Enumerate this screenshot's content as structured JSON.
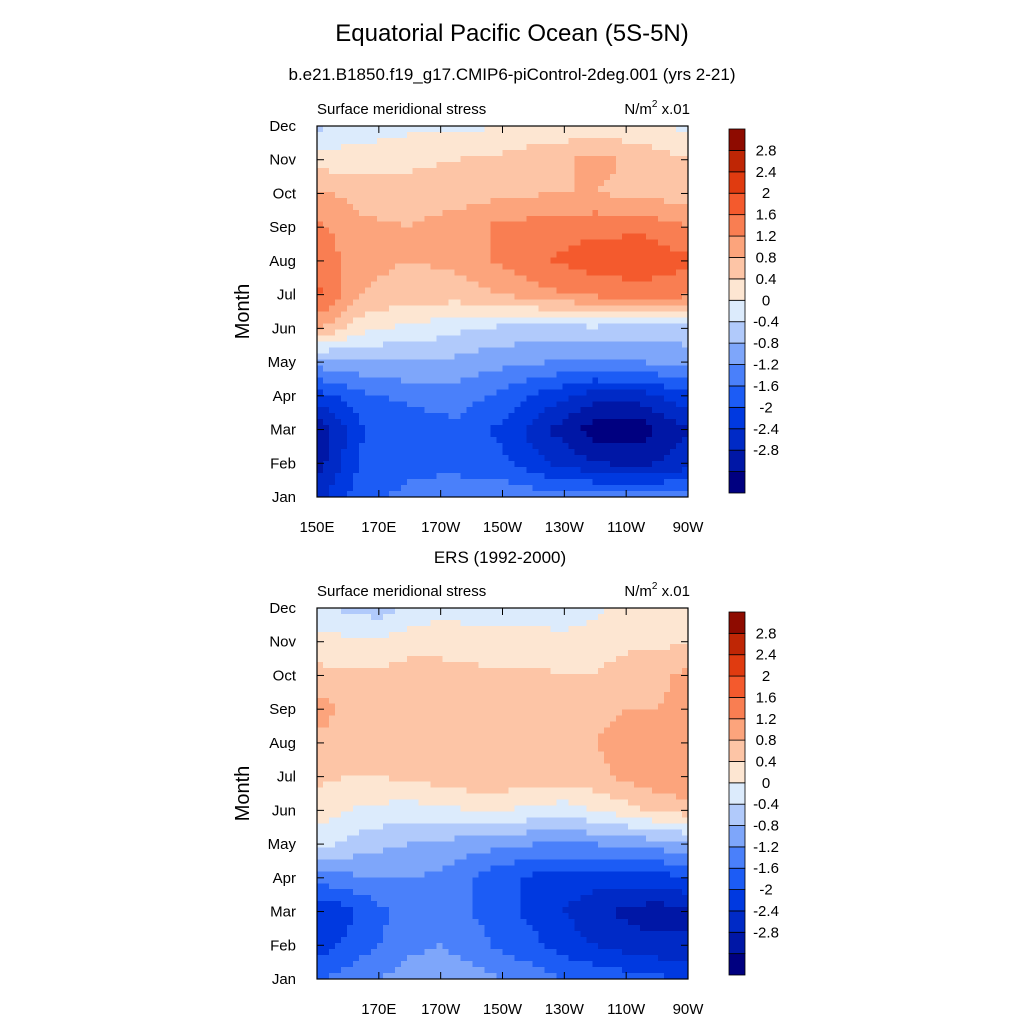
{
  "figure": {
    "title": "Equatorial Pacific Ocean (5S-5N)",
    "subtitle": "b.e21.B1850.f19_g17.CMIP6-piControl-2deg.001 (yrs 2-21)",
    "caption": "ERS (1992-2000)"
  },
  "colors": {
    "levels": [
      "#000080",
      "#0017a6",
      "#002ac6",
      "#0039e0",
      "#1c5cf5",
      "#4a80fa",
      "#7ea6fa",
      "#b1cafb",
      "#dcebfc",
      "#fde6d2",
      "#fdc5a6",
      "#fca47c",
      "#f97e52",
      "#f45a2d",
      "#e03b10",
      "#bf2605",
      "#8e0b00"
    ]
  },
  "colorbar_labels": [
    "2.8",
    "2.4",
    "2",
    "1.6",
    "1.2",
    "0.8",
    "0.4",
    "0",
    "-0.4",
    "-0.8",
    "-1.2",
    "-1.6",
    "-2",
    "-2.4",
    "-2.8"
  ],
  "chart_data": [
    {
      "type": "heatmap",
      "panel": "model",
      "left_label": "Surface meridional stress",
      "right_label": "N/m",
      "right_label_sup": "2",
      "right_label_suffix": " x.01",
      "ylabel": "Month",
      "y_ticks": [
        "Jan",
        "Feb",
        "Mar",
        "Apr",
        "May",
        "Jun",
        "Jul",
        "Aug",
        "Sep",
        "Oct",
        "Nov",
        "Dec"
      ],
      "x_ticks": [
        "150E",
        "170E",
        "170W",
        "150W",
        "130W",
        "110W",
        "90W"
      ],
      "x_tick_values": [
        150,
        170,
        190,
        210,
        230,
        250,
        270
      ],
      "xlim": [
        150,
        270
      ],
      "ylim": [
        1,
        12
      ],
      "levels": [
        -2.8,
        -2.4,
        -2,
        -1.6,
        -1.2,
        -0.8,
        -0.4,
        0,
        0.4,
        0.8,
        1.2,
        1.6,
        2,
        2.4,
        2.8
      ],
      "lon": [
        150,
        165,
        180,
        195,
        210,
        225,
        240,
        255,
        270
      ],
      "month": [
        1,
        2,
        3,
        4,
        5,
        6,
        7,
        8,
        9,
        10,
        11,
        12
      ],
      "values": [
        [
          -2.2,
          -1.3,
          -1.1,
          -1.0,
          -0.9,
          -1.0,
          -1.0,
          -1.0,
          -1.0
        ],
        [
          -2.6,
          -1.5,
          -1.3,
          -1.3,
          -1.5,
          -2.0,
          -2.4,
          -2.5,
          -2.2
        ],
        [
          -2.7,
          -1.6,
          -1.4,
          -1.3,
          -1.7,
          -2.4,
          -3.0,
          -3.0,
          -2.4
        ],
        [
          -1.8,
          -1.3,
          -1.1,
          -1.0,
          -1.3,
          -1.8,
          -2.2,
          -2.2,
          -1.7
        ],
        [
          -0.6,
          -0.5,
          -0.4,
          -0.5,
          -0.7,
          -0.8,
          -0.9,
          -0.8,
          -0.6
        ],
        [
          1.3,
          0.5,
          0.3,
          0.1,
          -0.1,
          -0.1,
          -0.1,
          -0.2,
          -0.2
        ],
        [
          2.1,
          1.2,
          1.0,
          1.0,
          1.2,
          1.5,
          1.7,
          1.8,
          1.7
        ],
        [
          1.9,
          1.3,
          1.2,
          1.3,
          1.7,
          2.0,
          2.2,
          2.3,
          2.1
        ],
        [
          1.7,
          1.3,
          1.2,
          1.4,
          1.7,
          1.8,
          1.9,
          1.9,
          1.6
        ],
        [
          1.3,
          1.0,
          1.0,
          1.0,
          1.1,
          1.2,
          1.2,
          1.1,
          1.0
        ],
        [
          0.6,
          0.6,
          0.7,
          0.8,
          0.9,
          1.1,
          1.3,
          1.1,
          0.8
        ],
        [
          -0.1,
          0.2,
          0.3,
          0.3,
          0.4,
          0.5,
          0.5,
          0.5,
          0.3
        ]
      ]
    },
    {
      "type": "heatmap",
      "panel": "observations",
      "left_label": "Surface meridional stress",
      "right_label": "N/m",
      "right_label_sup": "2",
      "right_label_suffix": " x.01",
      "ylabel": "Month",
      "y_ticks": [
        "Jan",
        "Feb",
        "Mar",
        "Apr",
        "May",
        "Jun",
        "Jul",
        "Aug",
        "Sep",
        "Oct",
        "Nov",
        "Dec"
      ],
      "x_ticks": [
        "170E",
        "170W",
        "150W",
        "130W",
        "110W",
        "90W"
      ],
      "x_tick_values": [
        170,
        190,
        210,
        230,
        250,
        270
      ],
      "xlim": [
        150,
        270
      ],
      "ylim": [
        1,
        12
      ],
      "levels": [
        -2.8,
        -2.4,
        -2,
        -1.6,
        -1.2,
        -0.8,
        -0.4,
        0,
        0.4,
        0.8,
        1.2,
        1.6,
        2,
        2.4,
        2.8
      ],
      "lon": [
        150,
        160,
        170,
        180,
        190,
        200,
        210,
        220,
        230,
        240,
        250,
        260,
        270
      ],
      "month": [
        1,
        2,
        3,
        4,
        5,
        6,
        7,
        8,
        9,
        10,
        11,
        12
      ],
      "values": [
        [
          -1.3,
          -1.0,
          -0.8,
          -0.6,
          -0.5,
          -0.6,
          -0.8,
          -1.0,
          -1.2,
          -1.3,
          -1.4,
          -1.5,
          -1.6
        ],
        [
          -1.8,
          -1.5,
          -1.2,
          -0.9,
          -0.8,
          -1.0,
          -1.3,
          -1.5,
          -1.8,
          -2.0,
          -2.2,
          -2.3,
          -2.3
        ],
        [
          -2.0,
          -1.7,
          -1.3,
          -1.0,
          -0.9,
          -1.2,
          -1.5,
          -1.7,
          -2.0,
          -2.3,
          -2.5,
          -2.6,
          -2.5
        ],
        [
          -1.0,
          -0.9,
          -0.8,
          -0.8,
          -0.9,
          -1.2,
          -1.5,
          -1.7,
          -1.8,
          -1.8,
          -1.8,
          -1.8,
          -1.6
        ],
        [
          0.2,
          -0.1,
          -0.3,
          -0.4,
          -0.5,
          -0.6,
          -0.7,
          -0.8,
          -0.8,
          -0.8,
          -0.7,
          -0.6,
          -0.5
        ],
        [
          0.6,
          0.4,
          0.3,
          0.2,
          0.3,
          0.4,
          0.4,
          0.3,
          0.2,
          0.4,
          0.6,
          0.9,
          1.0
        ],
        [
          0.9,
          0.8,
          0.8,
          0.9,
          1.0,
          1.1,
          1.1,
          1.0,
          1.0,
          1.1,
          1.3,
          1.5,
          1.6
        ],
        [
          1.1,
          1.0,
          0.9,
          1.0,
          1.1,
          1.2,
          1.2,
          1.1,
          1.1,
          1.2,
          1.3,
          1.5,
          1.4
        ],
        [
          1.4,
          1.1,
          1.0,
          1.0,
          1.1,
          1.1,
          1.0,
          1.0,
          1.0,
          1.1,
          1.2,
          1.2,
          1.3
        ],
        [
          0.9,
          0.9,
          0.9,
          1.0,
          1.0,
          0.9,
          0.9,
          0.9,
          0.8,
          0.8,
          1.0,
          1.1,
          1.3
        ],
        [
          0.6,
          0.5,
          0.5,
          0.6,
          0.6,
          0.6,
          0.5,
          0.5,
          0.5,
          0.6,
          0.7,
          0.7,
          0.8
        ],
        [
          0.1,
          -0.1,
          -0.2,
          0.1,
          0.3,
          0.2,
          0.3,
          0.3,
          0.2,
          0.3,
          0.5,
          0.5,
          0.4
        ]
      ]
    }
  ]
}
